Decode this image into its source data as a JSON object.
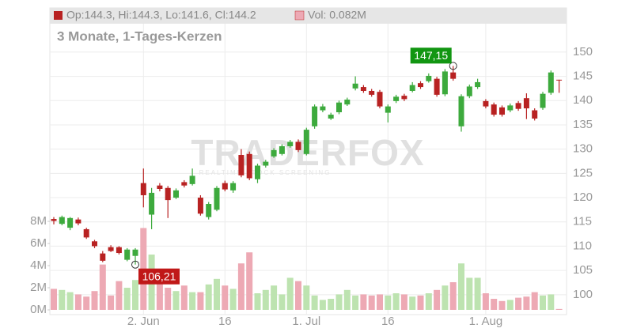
{
  "chart_data": {
    "type": "candlestick",
    "title": "3 Monate, 1-Tages-Kerzen",
    "legend_ohlc": "Op:144.3, Hi:144.3, Lo:141.6, Cl:144.2",
    "legend_volume": "Vol: 0.082M",
    "watermark": "TRADERFOX",
    "watermark_subtitle": "REALTIME STOCK SCREENING",
    "categories": [
      null,
      null,
      null,
      null,
      null,
      null,
      null,
      null,
      null,
      null,
      null,
      "2. Jun",
      null,
      null,
      null,
      null,
      null,
      null,
      null,
      null,
      null,
      "16",
      null,
      null,
      null,
      null,
      null,
      null,
      null,
      null,
      null,
      "1. Jul",
      null,
      null,
      null,
      null,
      null,
      null,
      null,
      null,
      null,
      "16",
      null,
      null,
      null,
      null,
      null,
      null,
      null,
      null,
      null,
      null,
      null,
      "1. Aug",
      null,
      null,
      null,
      null,
      null,
      null,
      null,
      null,
      null
    ],
    "open": [
      115.6,
      114.6,
      113.8,
      115.5,
      113.5,
      111.0,
      108.5,
      109.8,
      109.8,
      107.2,
      108.0,
      123.0,
      116.5,
      122.5,
      122.0,
      120.0,
      123.2,
      122.8,
      120.0,
      116.0,
      117.5,
      123.0,
      121.5,
      128.8,
      129.0,
      123.8,
      126.6,
      128.5,
      129.0,
      130.6,
      131.5,
      129.0,
      134.7,
      138.0,
      136.3,
      137.6,
      139.2,
      142.5,
      142.8,
      142.0,
      141.8,
      137.5,
      139.9,
      141.0,
      142.0,
      143.6,
      144.0,
      144.5,
      141.3,
      145.8,
      134.7,
      140.9,
      142.8,
      139.9,
      139.2,
      138.6,
      138.0,
      139.5,
      140.5,
      138.0,
      138.5,
      141.6,
      144.3
    ],
    "high": [
      116.0,
      116.3,
      116.0,
      115.9,
      113.8,
      111.3,
      109.0,
      110.2,
      110.0,
      109.6,
      109.6,
      126.0,
      122.0,
      123.0,
      122.4,
      121.9,
      123.6,
      126.0,
      120.5,
      119.1,
      122.4,
      123.5,
      123.4,
      130.0,
      129.5,
      127.0,
      127.8,
      130.2,
      131.0,
      131.9,
      132.0,
      134.4,
      139.2,
      139.3,
      137.5,
      140.0,
      140.6,
      145.0,
      143.2,
      142.4,
      142.2,
      139.2,
      141.2,
      141.4,
      143.8,
      144.0,
      145.6,
      144.9,
      146.5,
      147.15,
      141.3,
      143.3,
      144.5,
      140.3,
      139.6,
      139.0,
      139.4,
      139.9,
      141.5,
      138.4,
      141.8,
      146.2,
      144.3
    ],
    "low": [
      114.5,
      114.3,
      113.3,
      114.3,
      111.5,
      109.6,
      106.7,
      108.8,
      108.3,
      106.9,
      106.21,
      118.0,
      113.5,
      121.3,
      115.8,
      119.7,
      122.1,
      122.5,
      116.3,
      115.5,
      117.2,
      121.3,
      121.0,
      124.2,
      123.6,
      123.0,
      126.2,
      128.2,
      128.7,
      130.3,
      129.4,
      128.7,
      134.2,
      137.6,
      136.0,
      137.2,
      138.9,
      142.1,
      141.6,
      140.8,
      138.4,
      135.5,
      139.5,
      139.9,
      141.7,
      142.4,
      143.7,
      140.8,
      140.9,
      144.1,
      133.6,
      140.5,
      142.4,
      138.4,
      136.7,
      136.7,
      137.6,
      137.9,
      136.2,
      135.9,
      138.1,
      141.2,
      141.6
    ],
    "close": [
      115.2,
      116.0,
      115.8,
      114.7,
      111.8,
      110.0,
      107.0,
      109.0,
      108.6,
      109.3,
      109.3,
      120.5,
      121.0,
      121.8,
      119.5,
      121.5,
      122.5,
      124.5,
      116.7,
      118.7,
      122.0,
      121.7,
      123.0,
      124.6,
      124.0,
      126.6,
      127.4,
      129.8,
      130.6,
      131.5,
      129.8,
      134.0,
      138.8,
      138.8,
      137.1,
      139.6,
      140.2,
      143.5,
      142.0,
      141.2,
      138.8,
      138.8,
      140.8,
      140.3,
      143.2,
      142.8,
      145.1,
      141.2,
      146.0,
      144.5,
      140.9,
      142.9,
      143.8,
      138.8,
      137.1,
      137.1,
      139.0,
      138.3,
      138.4,
      136.3,
      141.4,
      145.8,
      144.2
    ],
    "volume": [
      1.9,
      1.8,
      1.6,
      1.4,
      1.2,
      1.7,
      4.1,
      1.3,
      2.6,
      2.0,
      2.7,
      7.4,
      5.0,
      2.5,
      2.0,
      1.7,
      2.2,
      1.6,
      1.6,
      2.3,
      2.8,
      2.2,
      1.9,
      4.2,
      5.2,
      1.5,
      1.8,
      2.2,
      1.4,
      2.9,
      2.6,
      2.2,
      1.3,
      0.9,
      1.0,
      1.4,
      1.8,
      1.3,
      1.4,
      1.3,
      1.4,
      1.3,
      1.5,
      1.4,
      1.2,
      1.3,
      1.5,
      1.8,
      2.2,
      2.5,
      4.2,
      2.9,
      2.9,
      1.5,
      1.0,
      0.8,
      0.9,
      1.1,
      1.2,
      1.6,
      1.3,
      1.4,
      0.082
    ],
    "annotations": [
      {
        "value": 147.15,
        "label": "147,15",
        "kind": "high"
      },
      {
        "value": 106.21,
        "label": "106,21",
        "kind": "low"
      }
    ],
    "ylim": [
      95.9,
      159.1
    ],
    "yticks": [
      100,
      105,
      110,
      115,
      120,
      125,
      130,
      135,
      140,
      145,
      150
    ],
    "y2lim": [
      0,
      27.3
    ],
    "y2ticks": [
      {
        "value": 0,
        "label": "0M"
      },
      {
        "value": 2,
        "label": "2M"
      },
      {
        "value": 4,
        "label": "4M"
      },
      {
        "value": 6,
        "label": "6M"
      },
      {
        "value": 8,
        "label": "8M"
      }
    ],
    "up_color": "#3daa3d",
    "down_color": "#b82222",
    "volume_up_color": "#bde3b0",
    "volume_down_color": "#eda9b4",
    "grid": true
  }
}
